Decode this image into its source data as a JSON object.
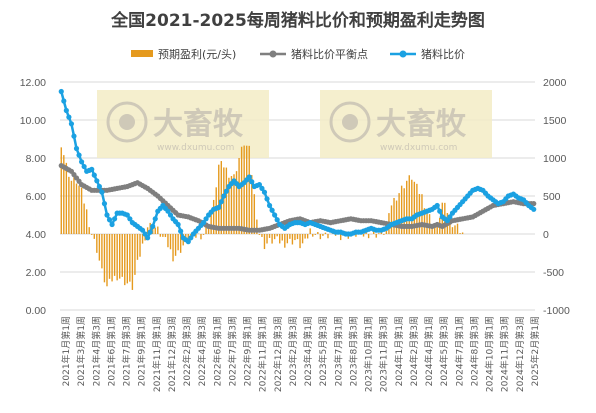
{
  "chart_data": {
    "type": "bar+line",
    "title": "全国2021-2025每周猪料比价和预期盈利走势图",
    "left_axis": {
      "ylim": [
        0,
        12
      ],
      "ticks": [
        "0.00",
        "2.00",
        "4.00",
        "6.00",
        "8.00",
        "10.00",
        "12.00"
      ]
    },
    "right_axis": {
      "ylim": [
        -1000,
        2000
      ],
      "ticks": [
        "-1000",
        "-500",
        "0",
        "500",
        "1000",
        "1500",
        "2000"
      ]
    },
    "x_labels": [
      "2021年1月第1周",
      "2021年3月第1周",
      "2021年4月第3周",
      "2021年6月第1周",
      "2021年7月第3周",
      "2021年9月第1周",
      "2021年11月第1周",
      "2021年12月第3周",
      "2022年2月第3周",
      "2022年4月第3周",
      "2022年6月第1周",
      "2022年7月第3周",
      "2022年9月第1周",
      "2022年11月第1周",
      "2022年12月第3周",
      "2023年2月第3周",
      "2023年4月第1周",
      "2023年5月第3周",
      "2023年7月第1周",
      "2023年8月第3周",
      "2023年10月第1周",
      "2023年11月第3周",
      "2024年1月第1周",
      "2024年2月第3周",
      "2024年4月第1周",
      "2024年5月第3周",
      "2024年7月第1周",
      "2024年8月第3周",
      "2024年10月第1周",
      "2024年11月第3周",
      "2024年12月第3周",
      "2025年2月第1周"
    ],
    "series": [
      {
        "name": "预期盈利(元/头)",
        "type": "bar",
        "axis": "right",
        "color": "#E59A1E",
        "points": [
          [
            0,
            1200
          ],
          [
            2,
            900
          ],
          [
            4,
            700
          ],
          [
            6,
            700
          ],
          [
            8,
            550
          ],
          [
            10,
            300
          ],
          [
            12,
            0
          ],
          [
            14,
            -200
          ],
          [
            16,
            -500
          ],
          [
            18,
            -700
          ],
          [
            20,
            -600
          ],
          [
            22,
            -550
          ],
          [
            24,
            -600
          ],
          [
            26,
            -650
          ],
          [
            28,
            -700
          ],
          [
            30,
            -400
          ],
          [
            32,
            -150
          ],
          [
            34,
            100
          ],
          [
            36,
            120
          ],
          [
            38,
            50
          ],
          [
            40,
            -50
          ],
          [
            42,
            -150
          ],
          [
            44,
            -300
          ],
          [
            46,
            -250
          ],
          [
            48,
            -150
          ],
          [
            50,
            -50
          ],
          [
            52,
            -30
          ],
          [
            54,
            -20
          ],
          [
            56,
            0
          ],
          [
            58,
            150
          ],
          [
            60,
            400
          ],
          [
            62,
            900
          ],
          [
            64,
            900
          ],
          [
            66,
            800
          ],
          [
            68,
            750
          ],
          [
            70,
            1000
          ],
          [
            72,
            1200
          ],
          [
            74,
            1100
          ],
          [
            76,
            500
          ],
          [
            78,
            0
          ],
          [
            80,
            -150
          ],
          [
            82,
            -100
          ],
          [
            84,
            -80
          ],
          [
            86,
            -100
          ],
          [
            88,
            -120
          ],
          [
            90,
            -100
          ],
          [
            92,
            -80
          ],
          [
            94,
            -150
          ],
          [
            96,
            -120
          ],
          [
            98,
            50
          ],
          [
            100,
            0
          ],
          [
            102,
            -20
          ],
          [
            104,
            -30
          ],
          [
            106,
            -10
          ],
          [
            108,
            0
          ],
          [
            110,
            -20
          ],
          [
            112,
            0
          ],
          [
            114,
            -30
          ],
          [
            116,
            0
          ],
          [
            118,
            -20
          ],
          [
            120,
            0
          ],
          [
            122,
            10
          ],
          [
            124,
            0
          ],
          [
            126,
            20
          ],
          [
            128,
            30
          ],
          [
            130,
            400
          ],
          [
            132,
            500
          ],
          [
            134,
            600
          ],
          [
            136,
            700
          ],
          [
            138,
            750
          ],
          [
            140,
            600
          ],
          [
            142,
            500
          ],
          [
            144,
            300
          ],
          [
            146,
            150
          ],
          [
            148,
            100
          ],
          [
            150,
            400
          ],
          [
            152,
            300
          ],
          [
            154,
            150
          ],
          [
            156,
            100
          ],
          [
            158,
            20
          ]
        ]
      },
      {
        "name": "猪料比价平衡点",
        "type": "line",
        "axis": "left",
        "color": "#7F7F7F",
        "points": [
          [
            0,
            7.6
          ],
          [
            4,
            7.3
          ],
          [
            8,
            6.6
          ],
          [
            12,
            6.3
          ],
          [
            18,
            6.3
          ],
          [
            22,
            6.4
          ],
          [
            26,
            6.5
          ],
          [
            30,
            6.7
          ],
          [
            34,
            6.4
          ],
          [
            38,
            6.0
          ],
          [
            42,
            5.5
          ],
          [
            46,
            5.0
          ],
          [
            50,
            4.9
          ],
          [
            54,
            4.7
          ],
          [
            58,
            4.4
          ],
          [
            62,
            4.3
          ],
          [
            66,
            4.3
          ],
          [
            70,
            4.3
          ],
          [
            74,
            4.2
          ],
          [
            78,
            4.2
          ],
          [
            82,
            4.3
          ],
          [
            86,
            4.5
          ],
          [
            90,
            4.7
          ],
          [
            94,
            4.8
          ],
          [
            98,
            4.6
          ],
          [
            102,
            4.7
          ],
          [
            106,
            4.6
          ],
          [
            110,
            4.7
          ],
          [
            114,
            4.8
          ],
          [
            118,
            4.7
          ],
          [
            122,
            4.7
          ],
          [
            126,
            4.6
          ],
          [
            130,
            4.5
          ],
          [
            134,
            4.4
          ],
          [
            138,
            4.4
          ],
          [
            142,
            4.5
          ],
          [
            146,
            4.4
          ],
          [
            148,
            4.5
          ],
          [
            150,
            4.4
          ],
          [
            154,
            4.7
          ],
          [
            158,
            4.8
          ],
          [
            162,
            4.9
          ],
          [
            166,
            5.2
          ],
          [
            170,
            5.5
          ],
          [
            174,
            5.6
          ],
          [
            178,
            5.7
          ],
          [
            182,
            5.6
          ],
          [
            186,
            5.6
          ]
        ]
      },
      {
        "name": "猪料比价",
        "type": "line",
        "axis": "left",
        "color": "#1BA1E2",
        "points": [
          [
            0,
            11.5
          ],
          [
            2,
            10.5
          ],
          [
            4,
            9.8
          ],
          [
            6,
            8.5
          ],
          [
            8,
            7.8
          ],
          [
            10,
            7.3
          ],
          [
            12,
            7.4
          ],
          [
            14,
            6.8
          ],
          [
            16,
            6.2
          ],
          [
            18,
            5.0
          ],
          [
            20,
            4.5
          ],
          [
            22,
            5.1
          ],
          [
            24,
            5.1
          ],
          [
            26,
            5.0
          ],
          [
            28,
            4.6
          ],
          [
            30,
            4.4
          ],
          [
            32,
            4.2
          ],
          [
            34,
            3.8
          ],
          [
            36,
            4.4
          ],
          [
            38,
            5.2
          ],
          [
            40,
            5.5
          ],
          [
            42,
            5.2
          ],
          [
            44,
            4.8
          ],
          [
            46,
            4.5
          ],
          [
            48,
            3.8
          ],
          [
            50,
            3.6
          ],
          [
            52,
            4.0
          ],
          [
            54,
            4.3
          ],
          [
            56,
            4.6
          ],
          [
            58,
            5.0
          ],
          [
            60,
            5.3
          ],
          [
            62,
            5.4
          ],
          [
            64,
            6.0
          ],
          [
            66,
            6.5
          ],
          [
            68,
            6.8
          ],
          [
            70,
            6.5
          ],
          [
            72,
            6.7
          ],
          [
            74,
            7.0
          ],
          [
            76,
            6.5
          ],
          [
            78,
            6.6
          ],
          [
            80,
            6.2
          ],
          [
            82,
            5.5
          ],
          [
            84,
            5.0
          ],
          [
            86,
            4.5
          ],
          [
            88,
            4.3
          ],
          [
            90,
            4.5
          ],
          [
            92,
            4.6
          ],
          [
            94,
            4.6
          ],
          [
            96,
            4.5
          ],
          [
            98,
            4.6
          ],
          [
            100,
            4.5
          ],
          [
            102,
            4.4
          ],
          [
            104,
            4.3
          ],
          [
            106,
            4.2
          ],
          [
            108,
            4.1
          ],
          [
            110,
            4.1
          ],
          [
            112,
            4.0
          ],
          [
            114,
            4.0
          ],
          [
            116,
            4.1
          ],
          [
            118,
            4.1
          ],
          [
            120,
            4.2
          ],
          [
            122,
            4.3
          ],
          [
            124,
            4.2
          ],
          [
            126,
            4.2
          ],
          [
            128,
            4.3
          ],
          [
            130,
            4.5
          ],
          [
            132,
            4.6
          ],
          [
            134,
            4.7
          ],
          [
            136,
            4.8
          ],
          [
            138,
            4.8
          ],
          [
            140,
            5.0
          ],
          [
            142,
            5.1
          ],
          [
            144,
            5.2
          ],
          [
            146,
            5.3
          ],
          [
            148,
            5.5
          ],
          [
            150,
            4.9
          ],
          [
            152,
            4.7
          ],
          [
            154,
            5.1
          ],
          [
            156,
            5.4
          ],
          [
            158,
            5.7
          ],
          [
            160,
            6.0
          ],
          [
            162,
            6.3
          ],
          [
            164,
            6.4
          ],
          [
            166,
            6.3
          ],
          [
            168,
            6.0
          ],
          [
            170,
            5.8
          ],
          [
            172,
            5.6
          ],
          [
            174,
            5.7
          ],
          [
            176,
            6.0
          ],
          [
            178,
            6.1
          ],
          [
            180,
            5.9
          ],
          [
            182,
            5.8
          ],
          [
            184,
            5.5
          ],
          [
            186,
            5.3
          ]
        ]
      }
    ]
  },
  "watermark": {
    "logo_text": "大畜牧",
    "url": "www.dxumu.com"
  },
  "colors": {
    "background": "#ffffff",
    "grid": "#d9d9d9",
    "watermark_bg": "#f3ecc5"
  }
}
